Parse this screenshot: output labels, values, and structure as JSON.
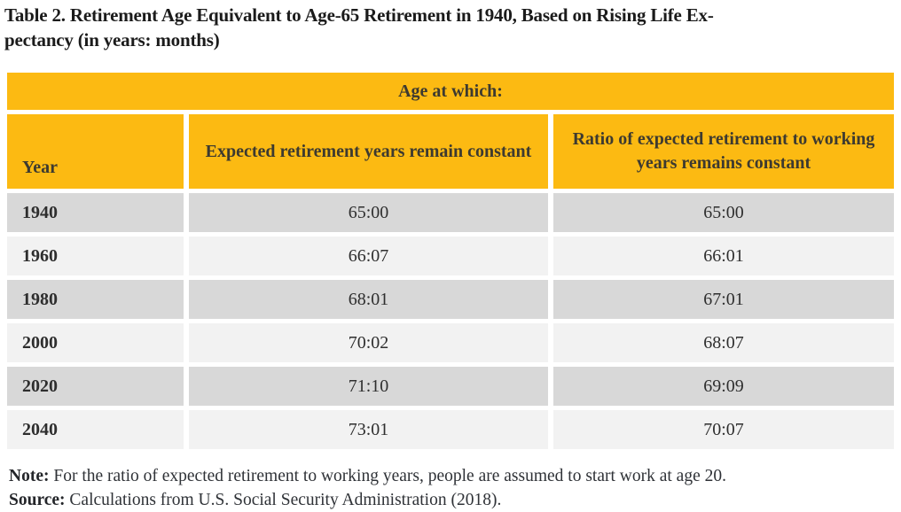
{
  "title": {
    "line1": "Table 2. Retirement Age Equivalent to Age-65 Retirement in 1940, Based on Rising Life Ex-",
    "line2": "pectancy (in years: months)"
  },
  "table": {
    "span_header": "Age at which:",
    "columns": [
      "Year",
      "Expected retirement years remain constant",
      "Ratio of expected retirement to working years remains constant"
    ],
    "rows": [
      {
        "year": "1940",
        "expected": "65:00",
        "ratio": "65:00"
      },
      {
        "year": "1960",
        "expected": "66:07",
        "ratio": "66:01"
      },
      {
        "year": "1980",
        "expected": "68:01",
        "ratio": "67:01"
      },
      {
        "year": "2000",
        "expected": "70:02",
        "ratio": "68:07"
      },
      {
        "year": "2020",
        "expected": "71:10",
        "ratio": "69:09"
      },
      {
        "year": "2040",
        "expected": "73:01",
        "ratio": "70:07"
      }
    ]
  },
  "footer": {
    "note_label": "Note:",
    "note_text": " For the ratio of expected retirement to working years, people are assumed to start work at age 20.",
    "source_label": "Source:",
    "source_text": " Calculations from U.S. Social Security Administration (2018)."
  },
  "colors": {
    "header_gold": "#fcba12",
    "row_dark": "#d8d8d8",
    "row_light": "#f2f2f2",
    "header_text": "#3d3a30",
    "body_text": "#2e2e2e"
  }
}
